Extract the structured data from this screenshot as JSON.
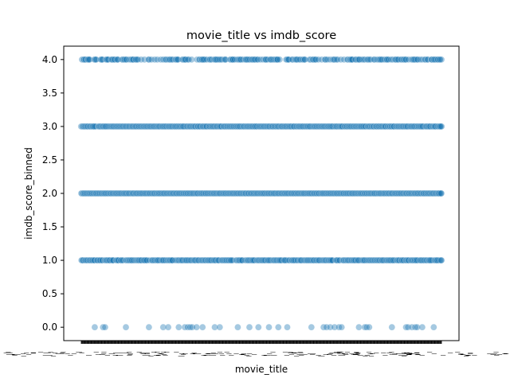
{
  "chart_data": {
    "type": "scatter",
    "title": "movie_title vs imdb_score",
    "xlabel": "movie_title",
    "ylabel": "imdb_score_binned",
    "x_kind": "categorical (movie titles, illegible overlapping tick labels)",
    "ylim": [
      -0.2,
      4.2
    ],
    "yticks": [
      "0.0",
      "0.5",
      "1.0",
      "1.5",
      "2.0",
      "2.5",
      "3.0",
      "3.5",
      "4.0"
    ],
    "ytick_values": [
      0,
      0.5,
      1,
      1.5,
      2,
      2.5,
      3,
      3.5,
      4
    ],
    "grid": false,
    "legend": "none",
    "marker_color": "#1f77b4",
    "marker_alpha": 0.4,
    "bins": [
      {
        "y": 4.0,
        "density": 0.45
      },
      {
        "y": 3.0,
        "density": 0.95
      },
      {
        "y": 2.0,
        "density": 1.0
      },
      {
        "y": 1.0,
        "density": 0.8
      },
      {
        "y": 0.0,
        "density": 0.06
      }
    ],
    "n_categories": 560
  }
}
